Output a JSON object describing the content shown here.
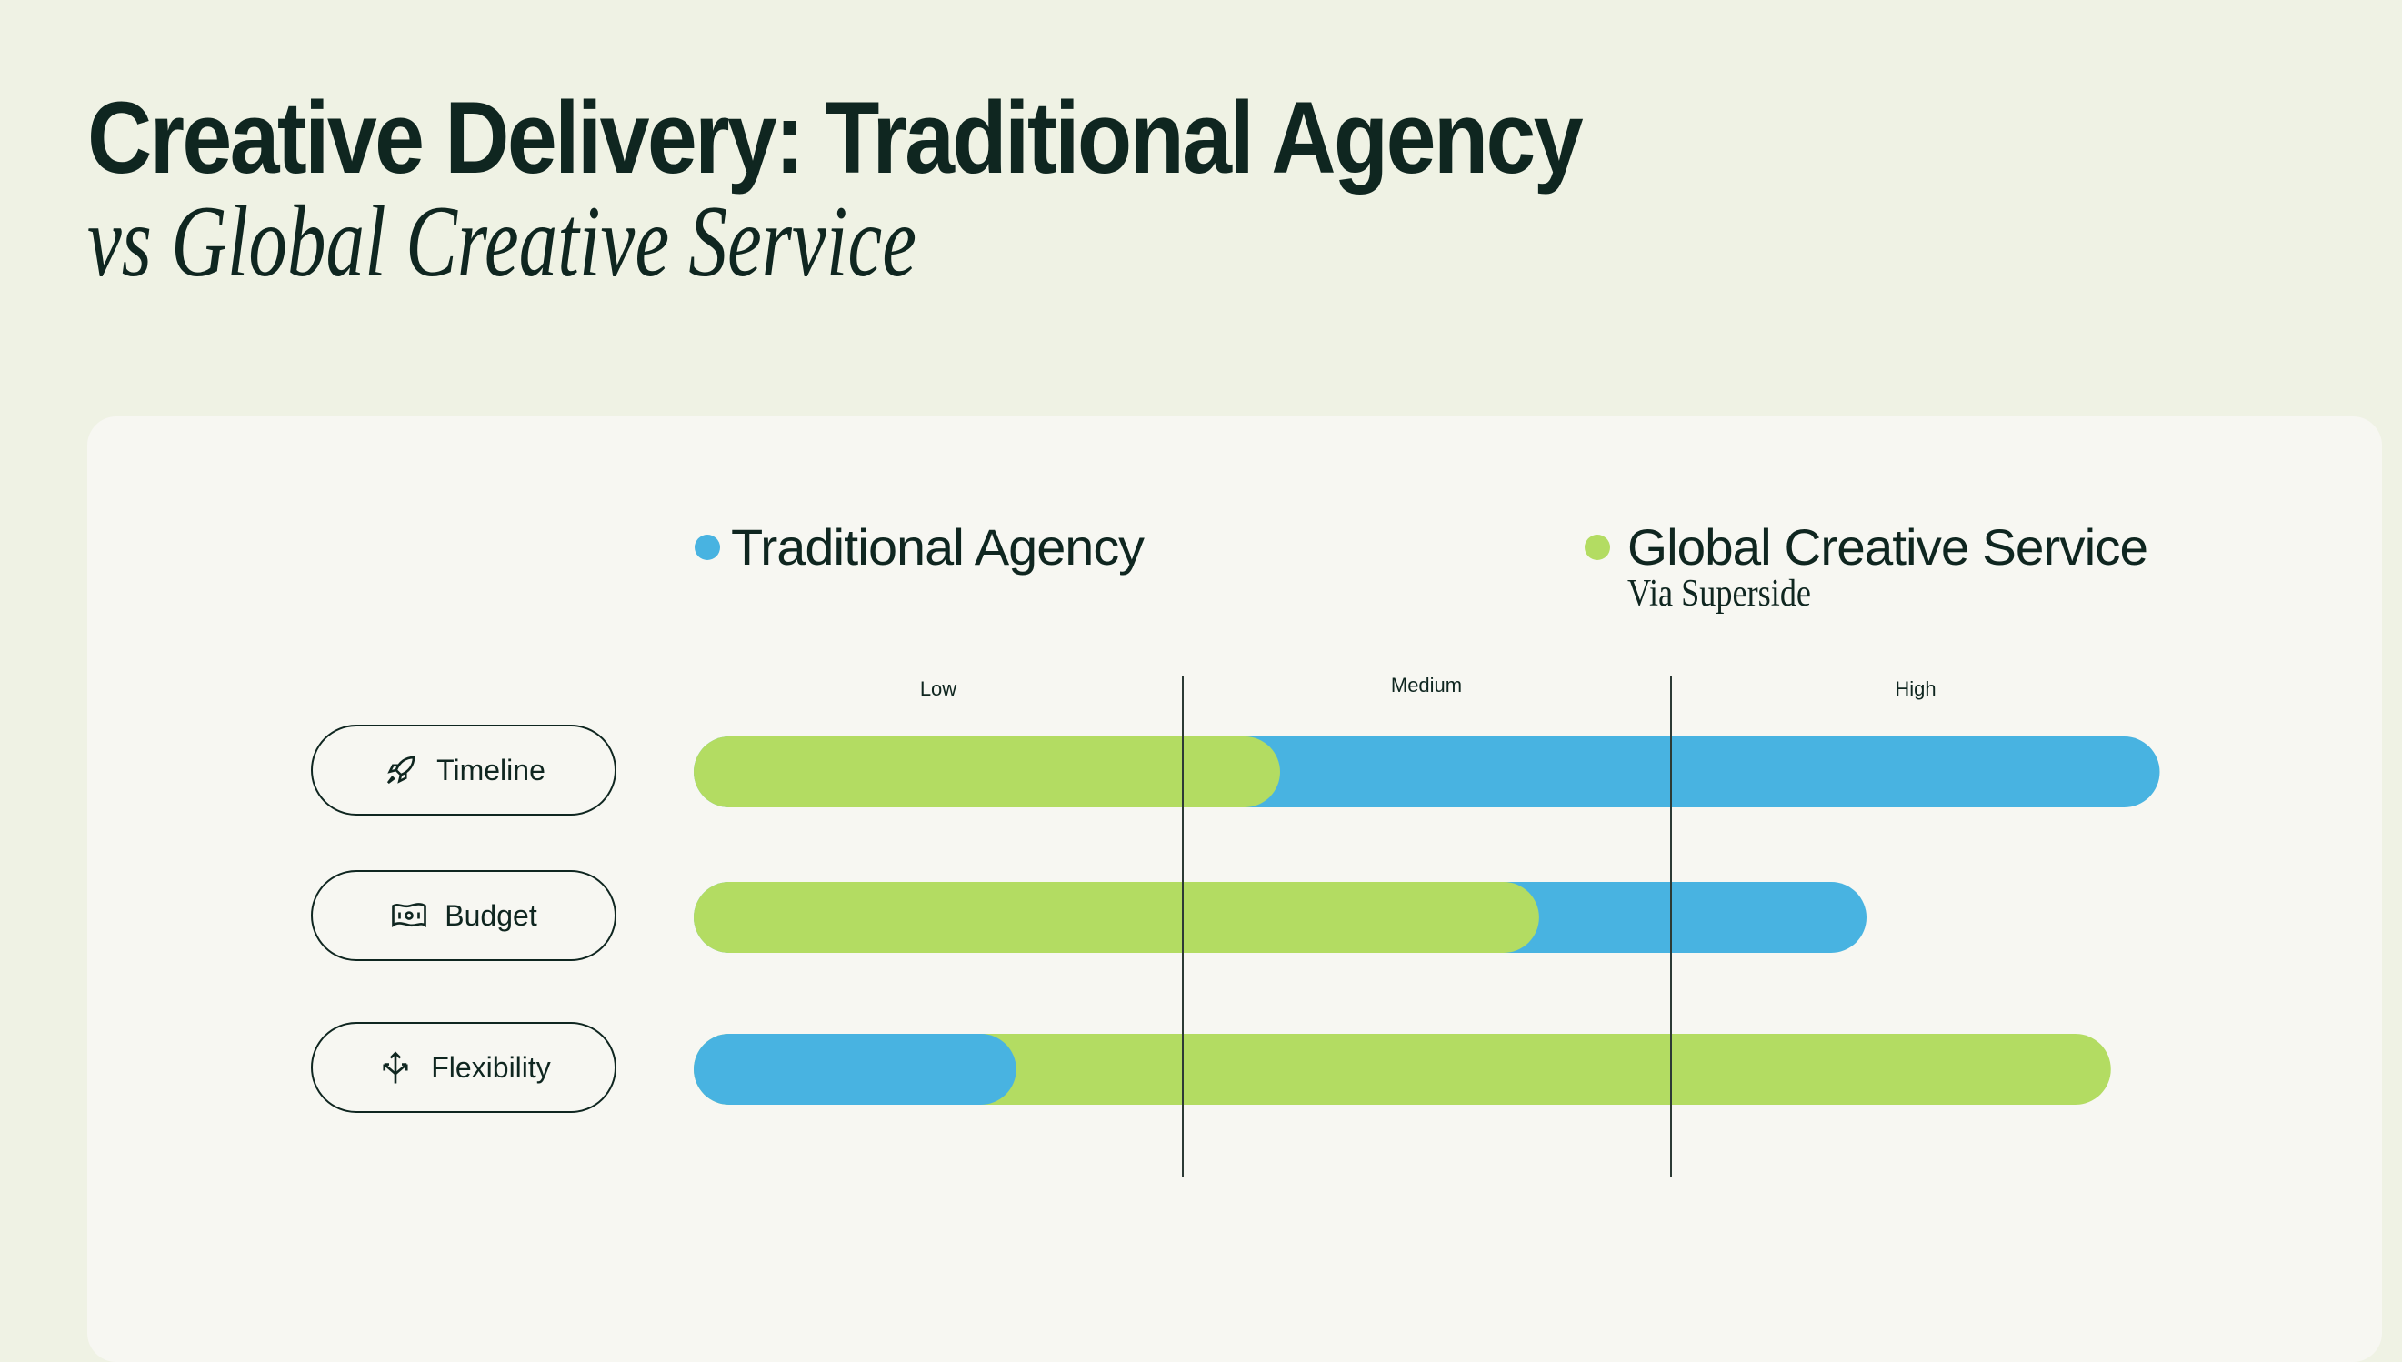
{
  "title": "Creative Delivery: Traditional Agency",
  "subtitle": "vs Global Creative Service",
  "chart_data": {
    "type": "bar",
    "orientation": "horizontal",
    "categories": [
      "Timeline",
      "Budget",
      "Flexibility"
    ],
    "category_icons": [
      "rocket-icon",
      "banknote-icon",
      "split-arrows-icon"
    ],
    "x_ticks": [
      "Low",
      "Medium",
      "High"
    ],
    "xlim": [
      0,
      3
    ],
    "grid": true,
    "legend_placement": "top",
    "series": [
      {
        "name": "Traditional Agency",
        "color": "#48b3e1",
        "values": [
          3.0,
          2.4,
          0.66
        ]
      },
      {
        "name": "Global Creative Service",
        "note": "Via Superside",
        "color": "#b3dc62",
        "values": [
          1.2,
          1.73,
          2.9
        ]
      }
    ]
  }
}
